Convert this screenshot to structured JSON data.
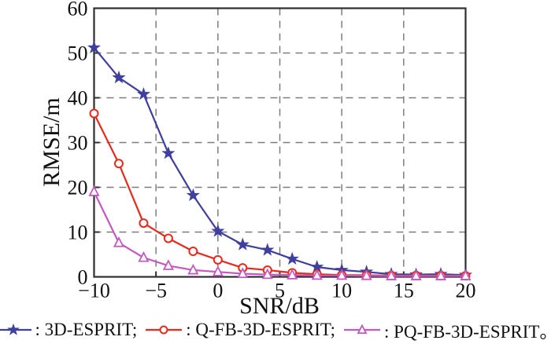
{
  "figure": {
    "background": "#ffffff",
    "frame_color": "#2f2f2f",
    "grid_color": "#7d7d7d"
  },
  "chart_data": {
    "type": "line",
    "title": "",
    "xlabel": "SNR/dB",
    "ylabel": "RMSE/m",
    "xlim": [
      -10,
      20
    ],
    "ylim": [
      0,
      60
    ],
    "xticks": [
      -10,
      -5,
      0,
      5,
      10,
      15,
      20
    ],
    "xtick_labels": [
      "−10",
      "−5",
      "0",
      "5",
      "10",
      "15",
      "20"
    ],
    "yticks": [
      0,
      10,
      20,
      30,
      40,
      50,
      60
    ],
    "ytick_labels": [
      "0",
      "10",
      "20",
      "30",
      "40",
      "50",
      "60"
    ],
    "grid": "dashed",
    "legend_position": "bottom",
    "x": [
      -10,
      -8,
      -6,
      -4,
      -2,
      0,
      2,
      4,
      6,
      8,
      10,
      12,
      14,
      16,
      18,
      20
    ],
    "series": [
      {
        "name": "3D-ESPRIT",
        "marker": "star",
        "color": "#3f3f9e",
        "values": [
          51.2,
          44.5,
          40.8,
          27.6,
          18.2,
          10.2,
          7.2,
          6.0,
          4.0,
          2.2,
          1.5,
          1.1,
          0.6,
          0.5,
          0.6,
          0.4
        ]
      },
      {
        "name": "Q-FB-3D-ESPRIT",
        "marker": "circle",
        "color": "#e8291c",
        "values": [
          36.5,
          25.3,
          12.0,
          8.6,
          5.7,
          3.8,
          2.0,
          1.5,
          0.9,
          0.6,
          0.4,
          0.35,
          0.3,
          0.3,
          0.3,
          0.25
        ]
      },
      {
        "name": "PQ-FB-3D-ESPRIT",
        "marker": "triangle",
        "color": "#c459c0",
        "values": [
          19.0,
          7.6,
          4.3,
          2.5,
          1.5,
          1.1,
          0.7,
          0.5,
          0.4,
          0.3,
          0.3,
          0.25,
          0.2,
          0.2,
          0.2,
          0.2
        ]
      }
    ],
    "legend_items": [
      ": 3D-ESPRIT;",
      ": Q-FB-3D-ESPRIT;",
      ": PQ-FB-3D-ESPRIT。"
    ]
  }
}
